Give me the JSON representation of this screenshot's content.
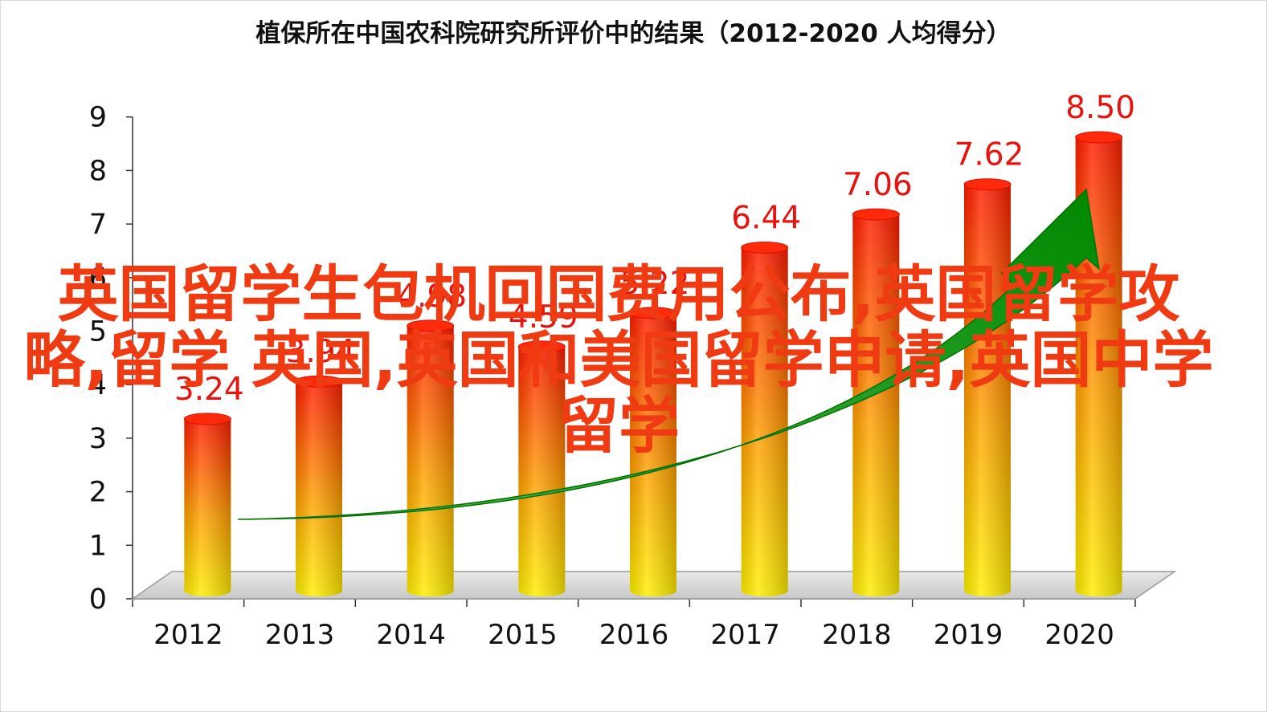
{
  "chart_data": {
    "type": "bar",
    "title": "植保所在中国农科院研究所评价中的结果（2012-2020  人均得分）",
    "categories": [
      "2012",
      "2013",
      "2014",
      "2015",
      "2016",
      "2017",
      "2018",
      "2019",
      "2020"
    ],
    "values": [
      3.24,
      3.94,
      4.98,
      4.59,
      5.22,
      6.44,
      7.06,
      7.62,
      8.5
    ],
    "data_labels": [
      "3.24",
      "3.94",
      "4.98",
      "4.59",
      "5.22",
      "6.44",
      "7.06",
      "7.62",
      "8.50"
    ],
    "y_ticks": [
      "0",
      "1",
      "2",
      "3",
      "4",
      "5",
      "6",
      "7",
      "8",
      "9"
    ],
    "ylim": [
      0,
      9
    ],
    "xlabel": "",
    "ylabel": "",
    "grid": false,
    "legend": "none",
    "style": "3d cylinders, yellow-to-red gradient, green upward trend arrow",
    "colors": {
      "bar_top": "#ff1a00",
      "bar_mid": "#ffa000",
      "bar_bottom": "#ffee00",
      "label": "#e5140f",
      "arrow": "#00a000"
    }
  },
  "watermark": {
    "text": "英国留学生包机回国费用公布,英国留学攻略,留学 英国,英国和美国留学申请,英国中学留学",
    "color": "#ef3a12"
  }
}
